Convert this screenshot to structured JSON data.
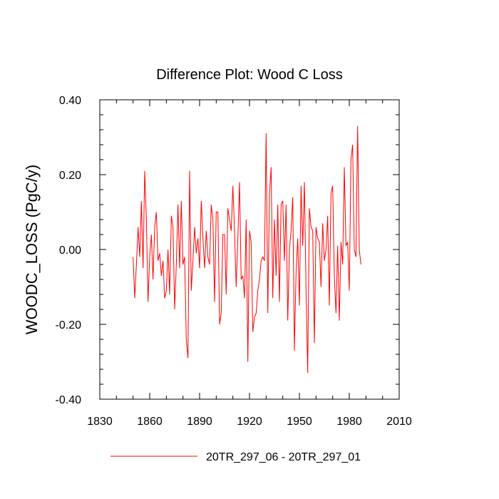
{
  "chart_data": {
    "type": "line",
    "title": "Difference Plot: Wood C Loss",
    "xlabel": "",
    "ylabel": "WOODC_LOSS  (PgC/y)",
    "xlim": [
      1830,
      2010
    ],
    "ylim": [
      -0.4,
      0.4
    ],
    "xticks": [
      1830,
      1860,
      1890,
      1920,
      1950,
      1980,
      2010
    ],
    "xtick_labels": [
      "1830",
      "1860",
      "1890",
      "1920",
      "1950",
      "1980",
      "2010"
    ],
    "yticks": [
      -0.4,
      -0.2,
      0.0,
      0.2,
      0.4
    ],
    "ytick_labels": [
      "-0.40",
      "-0.20",
      "0.00",
      "0.20",
      "0.40"
    ],
    "legend_position": "bottom-center",
    "series": [
      {
        "name": "20TR_297_06 - 20TR_297_01",
        "color": "#ff0000",
        "x_start": 1850,
        "x_step": 1,
        "values": [
          -0.02,
          -0.13,
          -0.04,
          0.06,
          -0.02,
          0.13,
          -0.05,
          0.21,
          0.08,
          -0.14,
          -0.02,
          0.04,
          -0.08,
          0.06,
          0.1,
          -0.03,
          -0.01,
          -0.07,
          -0.03,
          -0.13,
          -0.11,
          0.0,
          -0.12,
          0.09,
          0.06,
          -0.16,
          -0.04,
          0.12,
          -0.05,
          0.13,
          -0.04,
          -0.02,
          -0.24,
          -0.29,
          0.21,
          -0.11,
          -0.03,
          0.06,
          -0.01,
          0.03,
          -0.05,
          0.13,
          0.03,
          -0.05,
          0.05,
          -0.02,
          -0.04,
          0.12,
          0.08,
          -0.14,
          0.1,
          0.1,
          -0.2,
          -0.17,
          0.04,
          0.04,
          -0.12,
          0.11,
          0.08,
          0.05,
          0.17,
          0.05,
          -0.1,
          0.03,
          0.18,
          -0.08,
          -0.07,
          -0.13,
          0.08,
          -0.3,
          0.05,
          0.02,
          -0.22,
          -0.18,
          -0.17,
          -0.11,
          -0.08,
          -0.03,
          -0.02,
          -0.03,
          0.31,
          -0.17,
          0.15,
          0.22,
          -0.13,
          0.08,
          -0.07,
          0.12,
          -0.14,
          0.12,
          0.13,
          -0.03,
          0.12,
          -0.19,
          0.0,
          0.05,
          0.14,
          -0.27,
          -0.06,
          0.03,
          -0.15,
          0.17,
          0.01,
          0.18,
          -0.11,
          -0.33,
          0.11,
          0.06,
          0.05,
          -0.25,
          0.06,
          0.03,
          0.02,
          -0.1,
          0.07,
          -0.03,
          0.0,
          0.09,
          -0.15,
          0.15,
          0.17,
          -0.07,
          -0.17,
          0.01,
          -0.19,
          0.02,
          -0.04,
          0.22,
          0.01,
          0.02,
          -0.11,
          0.24,
          0.28,
          0.0,
          -0.02,
          0.33,
          0.0,
          -0.04
        ]
      }
    ]
  }
}
